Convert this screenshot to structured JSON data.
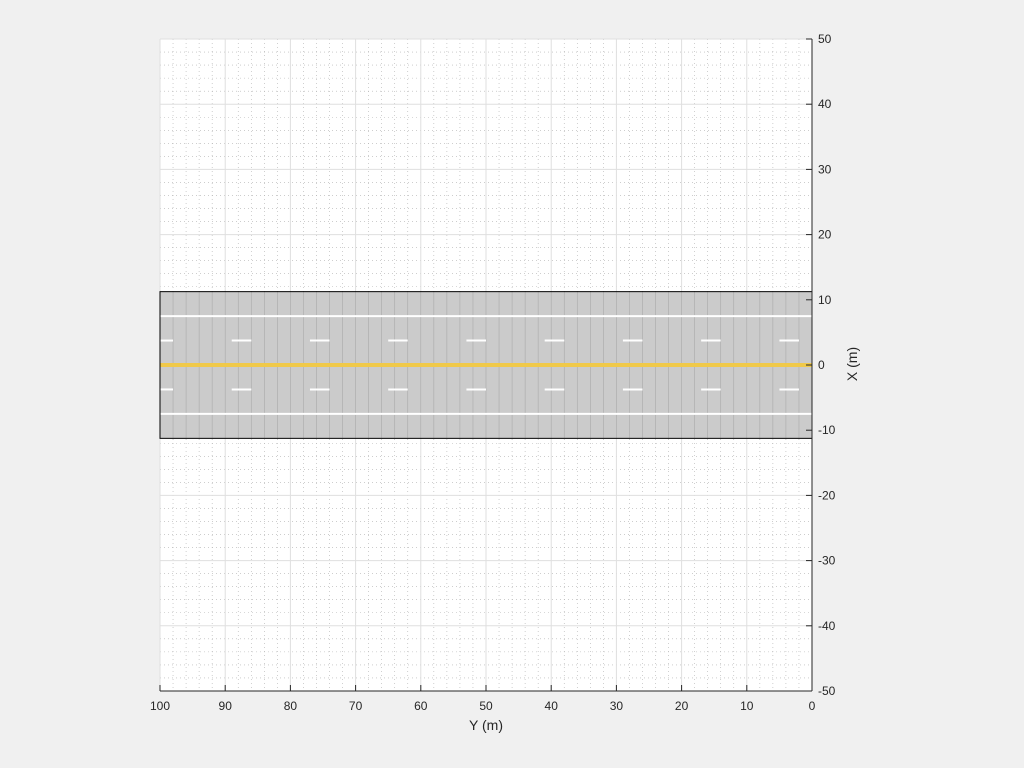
{
  "chart_data": {
    "type": "scatter",
    "title": "",
    "xlabel": "Y (m)",
    "ylabel": "X (m)",
    "xlim": [
      0,
      100
    ],
    "x_reversed": true,
    "ylim": [
      -50,
      50
    ],
    "y_axis_location": "right",
    "x_ticks": [
      100,
      90,
      80,
      70,
      60,
      50,
      40,
      30,
      20,
      10,
      0
    ],
    "y_ticks": [
      50,
      40,
      30,
      20,
      10,
      0,
      -10,
      -20,
      -30,
      -40,
      -50
    ],
    "grid": true,
    "minor_grid": true,
    "road": {
      "x_range": [
        -11.25,
        11.25
      ],
      "y_range": [
        0,
        100
      ],
      "fill": "#cbcbcb",
      "border": "#000000",
      "segment_spacing_y": 2,
      "center_line": {
        "x": 0,
        "color": "#f0c94a"
      },
      "solid_lines": [
        7.5,
        -7.5
      ],
      "dashed_lines": [
        3.75,
        -3.75
      ],
      "dash_pattern": {
        "length": 3,
        "gap": 9,
        "start": 2
      },
      "lane_marking_color": "#ffffff"
    }
  },
  "colors": {
    "figure_background": "#f0f0f0",
    "axes_background": "#ffffff",
    "grid": "#dfdfdf",
    "minor_grid": "#b0b0b0",
    "axis": "#262626"
  }
}
